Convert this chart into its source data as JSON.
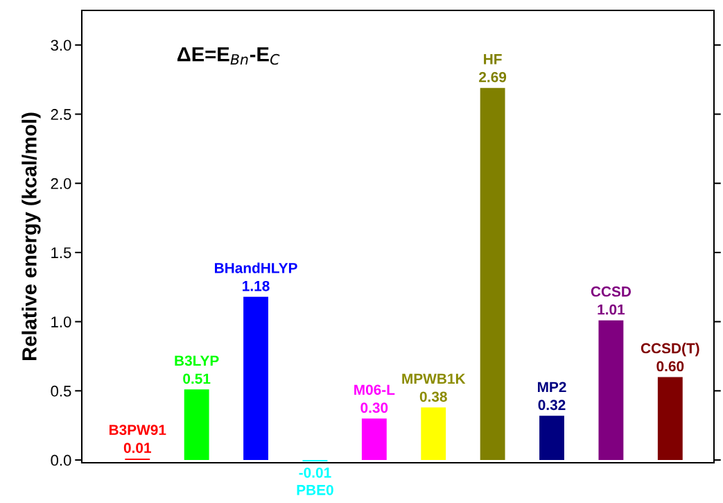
{
  "chart_data": {
    "type": "bar",
    "ylabel": "Relative energy (kcal/mol)",
    "categories": [
      "B3PW91",
      "B3LYP",
      "BHandHLYP",
      "PBE0",
      "M06-L",
      "MPWB1K",
      "HF",
      "MP2",
      "CCSD",
      "CCSD(T)"
    ],
    "values": [
      0.01,
      0.51,
      1.18,
      -0.01,
      0.3,
      0.38,
      2.69,
      0.32,
      1.01,
      0.6
    ],
    "colors": [
      "#ff0000",
      "#00ff00",
      "#0000ff",
      "#00ffff",
      "#ff00ff",
      "#ffff00",
      "#808000",
      "#000080",
      "#800080",
      "#800000"
    ],
    "value_labels": [
      "0.01",
      "0.51",
      "1.18",
      "-0.01",
      "0.30",
      "0.38",
      "2.69",
      "0.32",
      "1.01",
      "0.60"
    ],
    "annotations": [
      "ΔE=E$_{Bn}$-E$_{C}$"
    ],
    "ylim": [
      -0.02,
      3.25
    ],
    "yticks": [
      {
        "value": 0,
        "label": "0.0"
      },
      {
        "value": 0.5,
        "label": "0.5"
      },
      {
        "value": 1,
        "label": "1.0"
      },
      {
        "value": 1.5,
        "label": "1.5"
      },
      {
        "value": 2,
        "label": "2.0"
      },
      {
        "value": 2.5,
        "label": "2.5"
      },
      {
        "value": 3,
        "label": "3.0"
      }
    ],
    "tick_labels": "y",
    "grid": false
  }
}
